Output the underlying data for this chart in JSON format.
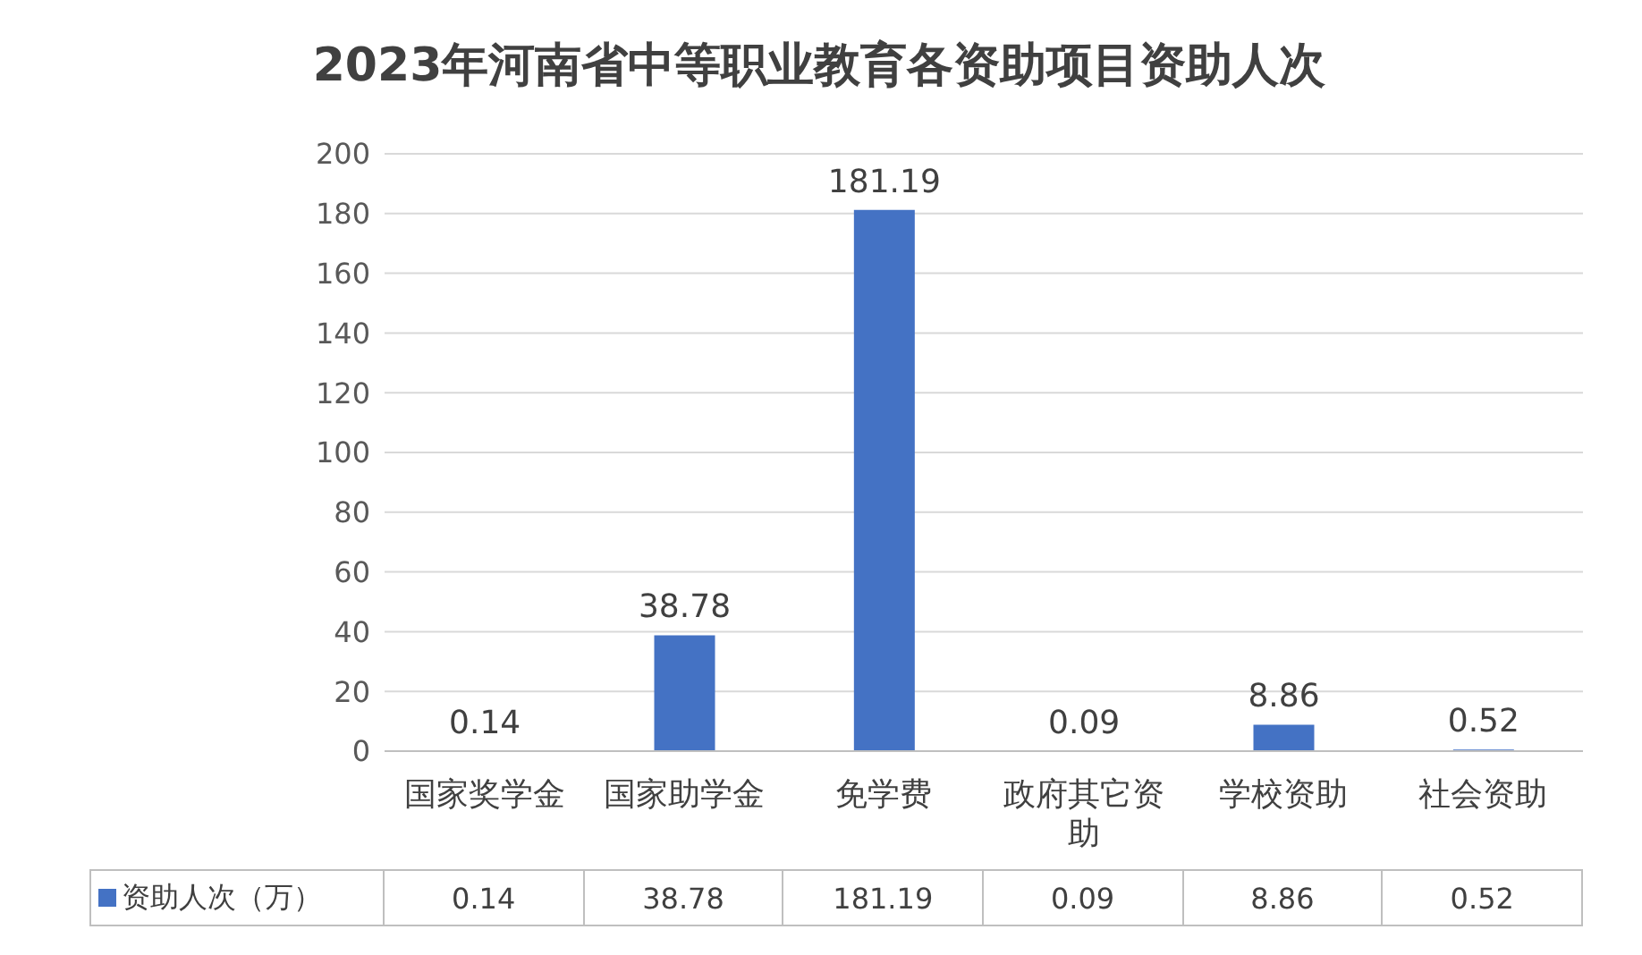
{
  "chart_data": {
    "type": "bar",
    "title": "2023年河南省中等职业教育各资助项目资助人次",
    "categories": [
      "国家奖学金",
      "国家助学金",
      "免学费",
      "政府其它资助",
      "学校资助",
      "社会资助"
    ],
    "series": [
      {
        "name": "资助人次（万）",
        "color": "#4472c4",
        "values": [
          0.14,
          38.78,
          181.19,
          0.09,
          8.86,
          0.52
        ],
        "value_labels": [
          "0.14",
          "38.78",
          "181.19",
          "0.09",
          "8.86",
          "0.52"
        ]
      }
    ],
    "ylim": [
      0,
      200
    ],
    "yticks": [
      0,
      20,
      40,
      60,
      80,
      100,
      120,
      140,
      160,
      180,
      200
    ],
    "grid": "y",
    "data_labels": true,
    "legend": "bottom"
  }
}
